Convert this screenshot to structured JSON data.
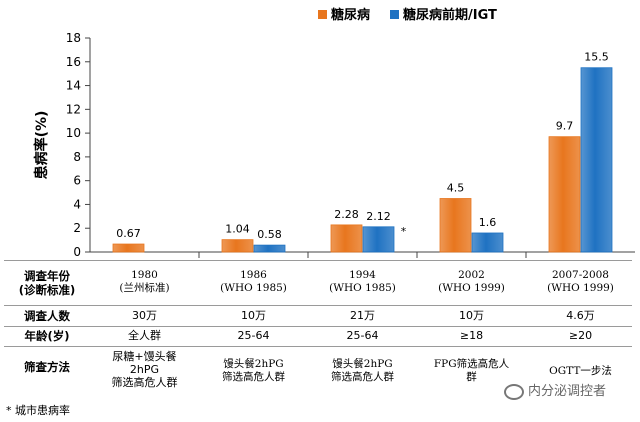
{
  "chart_data": {
    "type": "bar",
    "categories": [
      "1980",
      "1986",
      "1994",
      "2002",
      "2007-2008"
    ],
    "series": [
      {
        "name": "糖尿病",
        "values": [
          0.67,
          1.04,
          2.28,
          4.5,
          9.7
        ],
        "labels": [
          "0.67",
          "1.04",
          "2.28",
          "4.5",
          "9.7"
        ],
        "color": "#E8761E"
      },
      {
        "name": "糖尿病前期/IGT",
        "values": [
          null,
          0.58,
          2.12,
          1.6,
          15.5
        ],
        "labels": [
          "",
          "0.58",
          "2.12",
          "1.6",
          "15.5"
        ],
        "color": "#1F72C2"
      }
    ],
    "ylabel": "患病率(%)",
    "ylim": [
      0,
      18
    ],
    "yticks": [
      "0",
      "2",
      "4",
      "6",
      "8",
      "10",
      "12",
      "14",
      "16",
      "18"
    ],
    "grid": false,
    "legend_position": "top-right",
    "annotation": "*"
  },
  "table": {
    "row_labels": [
      "调查年份\n(诊断标准)",
      "调查人数",
      "年龄(岁)",
      "筛查方法"
    ],
    "columns": [
      {
        "year": "1980\n(兰州标准)",
        "count": "30万",
        "age": "全人群",
        "method": "尿糖+馒头餐\n2hPG\n筛选高危人群"
      },
      {
        "year": "1986\n(WHO 1985)",
        "count": "10万",
        "age": "25-64",
        "method": "馒头餐2hPG\n筛选高危人群"
      },
      {
        "year": "1994\n(WHO 1985)",
        "count": "21万",
        "age": "25-64",
        "method": "馒头餐2hPG\n筛选高危人群"
      },
      {
        "year": "2002\n(WHO 1999)",
        "count": "10万",
        "age": "≥18",
        "method": "FPG筛选高危人\n群"
      },
      {
        "year": "2007-2008\n(WHO 1999)",
        "count": "4.6万",
        "age": "≥20",
        "method": "OGTT一步法"
      }
    ]
  },
  "footnote": "* 城市患病率",
  "watermark": "内分泌调控者"
}
